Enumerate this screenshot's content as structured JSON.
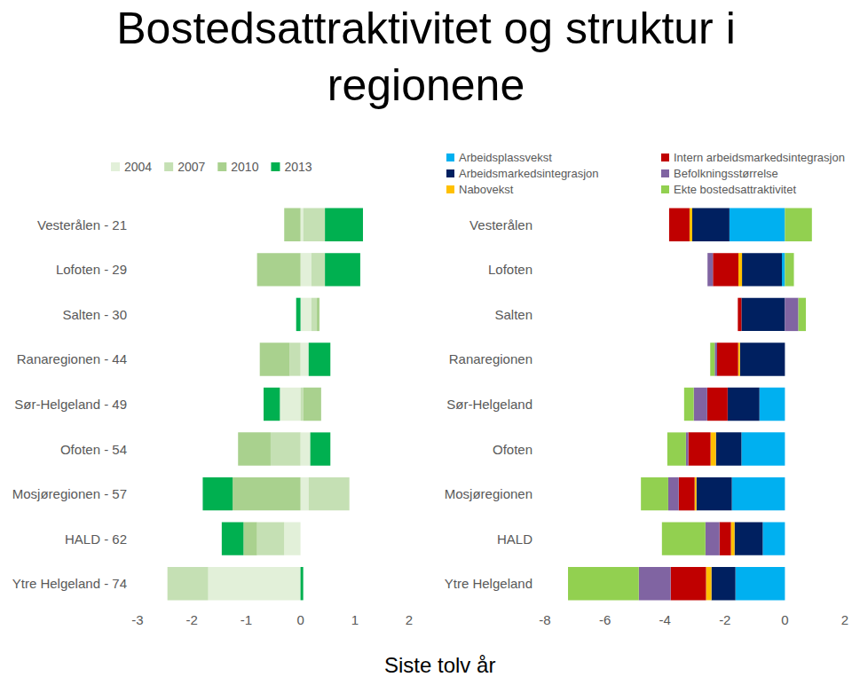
{
  "title": "Bostedsattraktivitet og struktur i regionene",
  "caption": "Siste tolv år",
  "chart_data": [
    {
      "type": "bar",
      "orientation": "horizontal",
      "stacked": true,
      "grid": false,
      "categories": [
        "Vesterålen - 21",
        "Lofoten - 29",
        "Salten - 30",
        "Ranaregionen - 44",
        "Sør-Helgeland - 49",
        "Ofoten - 54",
        "Mosjøregionen - 57",
        "HALD - 62",
        "Ytre Helgeland - 74"
      ],
      "xlim": [
        -3,
        2
      ],
      "xticks": [
        -3,
        -2,
        -1,
        0,
        1,
        2
      ],
      "series": [
        {
          "name": "2004",
          "color": "#e2f0d9",
          "values": [
            0.05,
            0.2,
            0.2,
            0.15,
            -0.38,
            0.18,
            0.15,
            -0.3,
            -1.7
          ]
        },
        {
          "name": "2007",
          "color": "#c5e0b4",
          "values": [
            0.4,
            0.25,
            0.1,
            -0.2,
            0.05,
            -0.55,
            0.75,
            -0.5,
            -0.75
          ]
        },
        {
          "name": "2010",
          "color": "#a9d18e",
          "values": [
            -0.3,
            -0.8,
            0.05,
            -0.55,
            0.33,
            -0.6,
            -1.25,
            -0.25,
            0
          ]
        },
        {
          "name": "2013",
          "color": "#00b050",
          "values": [
            0.7,
            0.65,
            -0.08,
            0.4,
            -0.3,
            0.37,
            -0.55,
            -0.4,
            0.05
          ]
        }
      ]
    },
    {
      "type": "bar",
      "orientation": "horizontal",
      "stacked": true,
      "grid": false,
      "categories": [
        "Vesterålen",
        "Lofoten",
        "Salten",
        "Ranaregionen",
        "Sør-Helgeland",
        "Ofoten",
        "Mosjøregionen",
        "HALD",
        "Ytre Helgeland"
      ],
      "xlim": [
        -8,
        2
      ],
      "xticks": [
        -8,
        -6,
        -4,
        -2,
        0,
        2
      ],
      "series": [
        {
          "name": "Arbeidsplassvekst",
          "color": "#00b0f0",
          "values": [
            -1.85,
            -0.1,
            0,
            0,
            -0.85,
            -1.45,
            -1.77,
            -0.74,
            -1.65
          ]
        },
        {
          "name": "Arbeidsmarkedsintegrasjon",
          "color": "#002060",
          "values": [
            -1.24,
            -1.33,
            -1.45,
            -1.5,
            -1.06,
            -0.85,
            -1.18,
            -0.94,
            -0.8
          ]
        },
        {
          "name": "Nabovekst",
          "color": "#ffc000",
          "values": [
            -0.09,
            -0.12,
            0,
            -0.06,
            0,
            -0.18,
            -0.06,
            -0.12,
            -0.18
          ]
        },
        {
          "name": "Intern arbeidsmarkedsintegrasjon",
          "color": "#c00000",
          "values": [
            -0.68,
            -0.85,
            -0.12,
            -0.7,
            -0.68,
            -0.74,
            -0.53,
            -0.38,
            -1.18
          ]
        },
        {
          "name": "Befolkningsstørrelse",
          "color": "#8064a2",
          "values": [
            0,
            -0.18,
            0.45,
            -0.08,
            -0.45,
            -0.08,
            -0.35,
            -0.47,
            -1.06
          ]
        },
        {
          "name": "Ekte bostedsattraktivitet",
          "color": "#92d050",
          "values": [
            0.9,
            0.3,
            0.25,
            -0.15,
            -0.32,
            -0.62,
            -0.91,
            -1.45,
            -2.36
          ]
        }
      ]
    }
  ]
}
